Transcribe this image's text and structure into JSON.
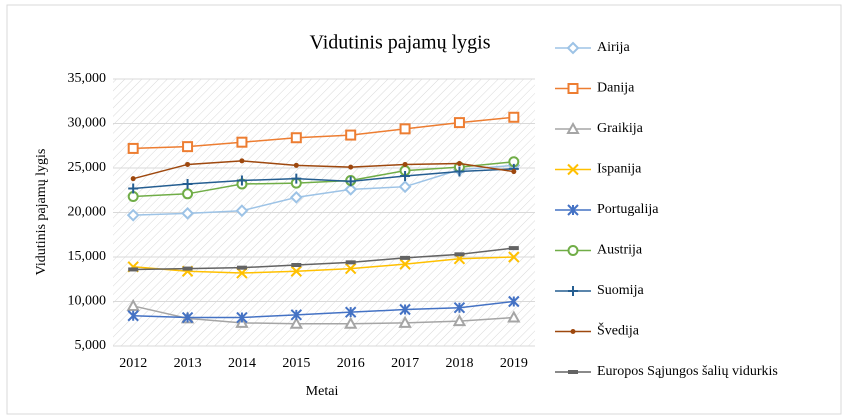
{
  "chart_data": {
    "type": "line",
    "title": "Vidutinis pajamų lygis",
    "x_label": "Metai",
    "y_label": "Vidutinis pajamų lygis",
    "categories": [
      "2012",
      "2013",
      "2014",
      "2015",
      "2016",
      "2017",
      "2018",
      "2019"
    ],
    "ylim": [
      5000,
      35000
    ],
    "yticks": [
      {
        "value": 5000,
        "label": "5,000"
      },
      {
        "value": 10000,
        "label": "10,000"
      },
      {
        "value": 15000,
        "label": "15,000"
      },
      {
        "value": 20000,
        "label": "20,000"
      },
      {
        "value": 25000,
        "label": "25,000"
      },
      {
        "value": 30000,
        "label": "30,000"
      },
      {
        "value": 35000,
        "label": "35,000"
      }
    ],
    "grid": true,
    "legend": "right",
    "series": [
      {
        "name": "Airija",
        "color": "#9dc3e6",
        "marker": "diamond",
        "values": [
          19700,
          19900,
          20200,
          21700,
          22600,
          22900,
          24800,
          25300
        ]
      },
      {
        "name": "Danija",
        "color": "#ed7d31",
        "marker": "square",
        "values": [
          27200,
          27400,
          27900,
          28400,
          28700,
          29400,
          30100,
          30700
        ]
      },
      {
        "name": "Graikija",
        "color": "#a5a5a5",
        "marker": "triangle",
        "values": [
          9500,
          8100,
          7600,
          7500,
          7500,
          7600,
          7800,
          8200
        ]
      },
      {
        "name": "Ispanija",
        "color": "#ffc000",
        "marker": "x",
        "values": [
          13900,
          13400,
          13200,
          13400,
          13700,
          14200,
          14800,
          15000
        ]
      },
      {
        "name": "Portugalija",
        "color": "#4472c4",
        "marker": "star",
        "values": [
          8400,
          8200,
          8200,
          8500,
          8800,
          9100,
          9300,
          10000
        ]
      },
      {
        "name": "Austrija",
        "color": "#70ad47",
        "marker": "circle",
        "values": [
          21800,
          22100,
          23200,
          23300,
          23600,
          24700,
          25100,
          25700
        ]
      },
      {
        "name": "Suomija",
        "color": "#255e91",
        "marker": "plus",
        "values": [
          22700,
          23200,
          23600,
          23800,
          23500,
          24100,
          24600,
          24900
        ]
      },
      {
        "name": "Švedija",
        "color": "#9e480e",
        "marker": "dot",
        "values": [
          23800,
          25400,
          25800,
          25300,
          25100,
          25400,
          25500,
          24600
        ]
      },
      {
        "name": "Europos Sąjungos šalių vidurkis",
        "color": "#636363",
        "marker": "dash",
        "values": [
          13600,
          13700,
          13800,
          14100,
          14400,
          14900,
          15300,
          16000
        ]
      }
    ]
  }
}
